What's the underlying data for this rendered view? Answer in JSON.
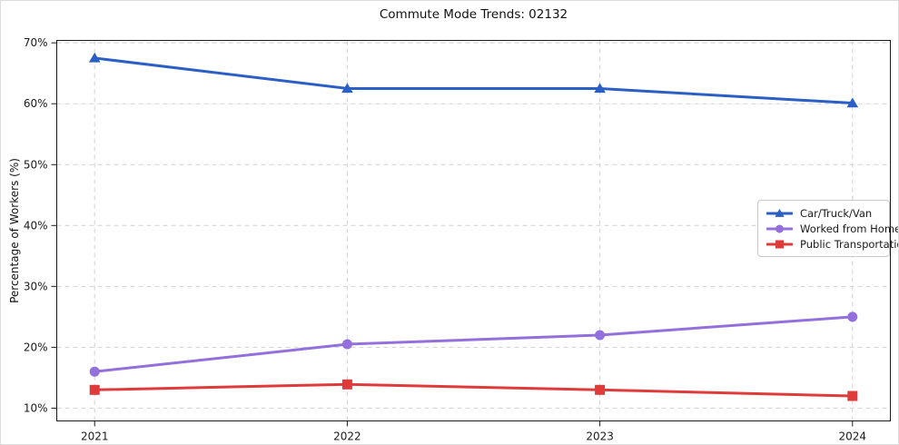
{
  "chart_data": {
    "type": "line",
    "title": "Commute Mode Trends: 02132",
    "xlabel": "",
    "ylabel": "Percentage of Workers (%)",
    "x": [
      2021,
      2022,
      2023,
      2024
    ],
    "xtick_labels": [
      "2021",
      "2022",
      "2023",
      "2024"
    ],
    "yticks": [
      10,
      20,
      30,
      40,
      50,
      60,
      70
    ],
    "ytick_labels": [
      "10%",
      "20%",
      "30%",
      "40%",
      "50%",
      "60%",
      "70%"
    ],
    "xlim": [
      2020.85,
      2024.15
    ],
    "ylim": [
      7.9,
      70.4
    ],
    "grid": true,
    "legend_position": "center-right",
    "series": [
      {
        "name": "Car/Truck/Van",
        "color": "#2b5fc4",
        "marker": "triangle",
        "values": [
          67.5,
          62.5,
          62.5,
          60.1
        ]
      },
      {
        "name": "Worked from Home",
        "color": "#9370db",
        "marker": "circle",
        "values": [
          16.0,
          20.5,
          22.0,
          25.0
        ]
      },
      {
        "name": "Public Transportation",
        "color": "#e03b3b",
        "marker": "square",
        "values": [
          13.0,
          13.9,
          13.0,
          12.0
        ]
      }
    ],
    "colors": {
      "grid": "#d2d2d2",
      "spine": "#1a1a1a",
      "tick_text": "#1a1a1a",
      "background": "#ffffff"
    }
  }
}
